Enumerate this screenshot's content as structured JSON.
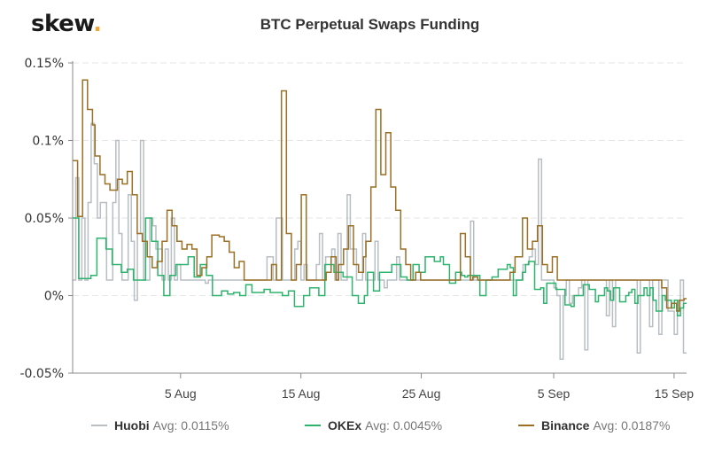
{
  "logo": {
    "text": "skew",
    "dot": "."
  },
  "colors": {
    "huobi": "#b7bec4",
    "okex": "#2eb36d",
    "binance": "#9b6f25",
    "grid": "#e6e6e6",
    "axis": "#888888",
    "logo_dot": "#e8a83a"
  },
  "legend": [
    {
      "name": "Huobi",
      "avg_label": "Avg: 0.0115%",
      "color": "#b7bec4"
    },
    {
      "name": "OKEx",
      "avg_label": "Avg: 0.0045%",
      "color": "#2eb36d"
    },
    {
      "name": "Binance",
      "avg_label": "Avg: 0.0187%",
      "color": "#9b6f25"
    }
  ],
  "chart_data": {
    "type": "line",
    "step": true,
    "title": "BTC Perpetual Swaps Funding",
    "xlabel": "",
    "ylabel": "",
    "ylim": [
      -0.05,
      0.15
    ],
    "yticks": [
      -0.05,
      0,
      0.05,
      0.1,
      0.15
    ],
    "ytick_labels": [
      "-0.05%",
      "0%",
      "0.05%",
      "0.1%",
      "0.15%"
    ],
    "xlim_days": [
      0,
      51
    ],
    "x_origin": "27 Jul",
    "xticks_day": [
      9,
      19,
      29,
      40,
      50
    ],
    "xtick_labels": [
      "5 Aug",
      "15 Aug",
      "25 Aug",
      "5 Sep",
      "15 Sep"
    ],
    "grid": "horizontal-dashed",
    "legend_position": "bottom",
    "period_days": 0.3333,
    "series": [
      {
        "name": "Huobi",
        "avg": 0.0115,
        "values": [
          0.01,
          0.076,
          0.01,
          0.05,
          0.01,
          0.06,
          0.111,
          0.085,
          0.05,
          0.06,
          0.06,
          0.01,
          0.01,
          0.06,
          0.1,
          0.04,
          0.01,
          0.01,
          0.065,
          0.035,
          -0.003,
          0.04,
          0.1,
          0.01,
          0.01,
          0.05,
          0.045,
          0.03,
          0.03,
          0.01,
          0.03,
          0.01,
          0.05,
          0.01,
          0.02,
          0.01,
          0.01,
          0.01,
          0.01,
          0.01,
          0.01,
          0.01,
          0.01,
          0.008,
          0.01,
          0.01,
          0.01,
          0.01,
          0.01,
          0.01,
          0.01,
          0.01,
          0.01,
          0.01,
          0.01,
          0.01,
          0.01,
          0.01,
          0.01,
          0.01,
          0.01,
          0.01,
          0.01,
          0.025,
          0.025,
          0.01,
          0.05,
          0.05,
          0.01,
          0.01,
          0.01,
          0.01,
          0.03,
          0.035,
          0.01,
          0.02,
          0.01,
          0.01,
          0.01,
          0.02,
          0.04,
          0.01,
          0.025,
          0.025,
          0.03,
          0.01,
          0.04,
          0.01,
          0.01,
          0.065,
          0.03,
          0.03,
          0.01,
          0.01,
          0.04,
          0.01,
          0.01,
          0.01,
          0.035,
          0.01,
          0.01,
          0.005,
          0.01,
          0.01,
          0.01,
          0.025,
          0.01,
          0.01,
          0.01,
          0.01,
          0.01,
          0.01,
          0.01,
          0.01,
          0.01,
          0.01,
          0.01,
          0.01,
          0.01,
          0.01,
          0.01,
          0.01,
          0.01,
          0.01,
          0.01,
          0.01,
          0.01,
          0.01,
          0.01,
          0.048,
          0.01,
          0.01,
          0.01,
          0.01,
          0.01,
          0.01,
          0.01,
          0.01,
          0.01,
          0.01,
          0.01,
          0.01,
          0.01,
          0.01,
          0.01,
          0.01,
          0.02,
          0.02,
          0.025,
          0.03,
          0.02,
          0.088,
          0.01,
          0.01,
          0.01,
          0.01,
          0.005,
          0.0,
          -0.041,
          0.0,
          0.01,
          -0.005,
          0.0,
          0.0,
          0.005,
          0.01,
          -0.035,
          0.01,
          0.01,
          0.01,
          0.01,
          0.01,
          0.01,
          -0.013,
          0.01,
          -0.02,
          0.01,
          0.01,
          0.01,
          0.01,
          0.01,
          0.01,
          0.01,
          -0.037,
          0.01,
          0.01,
          0.01,
          -0.02,
          0.01,
          0.01,
          -0.025,
          0.01,
          0.01,
          -0.01,
          -0.01,
          -0.025,
          -0.01,
          0.01,
          -0.037
        ],
        "color": "#b7bec4"
      },
      {
        "name": "OKEx",
        "avg": 0.0045,
        "values": [
          0.05,
          0.05,
          0.011,
          0.011,
          0.011,
          0.011,
          0.013,
          0.013,
          0.037,
          0.037,
          0.037,
          0.03,
          0.03,
          0.02,
          0.02,
          0.02,
          0.015,
          0.015,
          0.017,
          0.017,
          0.01,
          0.01,
          0.01,
          0.01,
          0.05,
          0.05,
          0.035,
          0.035,
          0.013,
          0.013,
          0.0,
          0.0,
          0.013,
          0.013,
          0.02,
          0.02,
          0.02,
          0.02,
          0.025,
          0.025,
          0.012,
          0.012,
          0.02,
          0.02,
          0.013,
          0.013,
          0.0,
          0.0,
          0.0,
          0.003,
          0.003,
          0.001,
          0.001,
          0.002,
          0.002,
          0.0,
          0.0,
          0.007,
          0.007,
          0.002,
          0.002,
          0.002,
          0.002,
          0.004,
          0.004,
          0.002,
          0.002,
          0.002,
          0.002,
          0.0,
          0.0,
          0.003,
          0.003,
          -0.007,
          -0.007,
          -0.007,
          0.0,
          0.0,
          0.005,
          0.005,
          0.005,
          0.0,
          0.0,
          0.02,
          0.02,
          0.02,
          0.015,
          0.015,
          0.015,
          0.012,
          0.012,
          0.012,
          0.0,
          0.0,
          -0.005,
          -0.005,
          0.0,
          0.015,
          0.015,
          0.003,
          0.003,
          0.015,
          0.015,
          0.015,
          0.015,
          0.02,
          0.02,
          0.02,
          0.012,
          0.012,
          0.01,
          0.01,
          0.02,
          0.02,
          0.015,
          0.015,
          0.025,
          0.025,
          0.025,
          0.022,
          0.022,
          0.025,
          0.02,
          0.02,
          0.008,
          0.008,
          0.015,
          0.015,
          0.013,
          0.012,
          0.013,
          0.013,
          0.013,
          0.013,
          0.0,
          0.0,
          0.01,
          0.01,
          0.012,
          0.012,
          0.017,
          0.017,
          0.017,
          0.02,
          0.018,
          0.0,
          0.01,
          0.01,
          0.015,
          0.02,
          0.022,
          0.022,
          0.004,
          0.004,
          0.005,
          -0.005,
          0.008,
          0.008,
          0.008,
          0.004,
          0.004,
          0.004,
          -0.006,
          -0.006,
          -0.007,
          0.0,
          0.0,
          0.0,
          0.007,
          0.007,
          0.004,
          0.004,
          -0.004,
          0.0,
          0.0,
          0.005,
          0.003,
          -0.003,
          0.005,
          0.005,
          -0.004,
          -0.004,
          0.0,
          0.002,
          0.004,
          -0.005,
          0.0,
          0.0,
          0.005,
          0.0,
          0.005,
          -0.003,
          -0.01,
          -0.01,
          0.0,
          -0.003,
          -0.003,
          -0.008,
          -0.003,
          -0.013,
          -0.008,
          -0.005
        ],
        "color": "#2eb36d"
      },
      {
        "name": "Binance",
        "avg": 0.0187,
        "values": [
          0.087,
          0.087,
          0.051,
          0.051,
          0.139,
          0.139,
          0.12,
          0.12,
          0.11,
          0.09,
          0.09,
          0.078,
          0.078,
          0.072,
          0.072,
          0.068,
          0.068,
          0.068,
          0.075,
          0.075,
          0.072,
          0.072,
          0.08,
          0.08,
          0.065,
          0.065,
          0.04,
          0.04,
          0.035,
          0.035,
          0.025,
          0.025,
          0.018,
          0.018,
          0.022,
          0.022,
          0.035,
          0.035,
          0.055,
          0.055,
          0.045,
          0.045,
          0.035,
          0.035,
          0.03,
          0.03,
          0.033,
          0.033,
          0.03,
          0.03,
          0.013,
          0.013,
          0.018,
          0.018,
          0.025,
          0.025,
          0.039,
          0.039,
          0.039,
          0.038,
          0.038,
          0.035,
          0.035,
          0.028,
          0.028,
          0.018,
          0.018,
          0.022,
          0.022,
          0.01,
          0.01,
          0.01,
          0.01,
          0.01,
          0.01,
          0.01,
          0.01,
          0.01,
          0.01,
          0.01,
          0.02,
          0.02,
          0.01,
          0.01,
          0.132,
          0.132,
          0.04,
          0.04,
          0.01,
          0.01,
          0.02,
          0.02,
          0.065,
          0.065,
          0.01,
          0.01,
          0.01,
          0.01,
          0.01,
          0.01,
          0.01,
          0.01,
          0.015,
          0.015,
          0.025,
          0.025,
          0.01,
          0.02,
          0.02,
          0.03,
          0.03,
          0.045,
          0.045,
          0.02,
          0.02,
          0.015,
          0.015,
          0.025,
          0.035,
          0.035,
          0.07,
          0.07,
          0.12,
          0.12,
          0.078,
          0.078,
          0.105,
          0.105,
          0.07,
          0.07,
          0.055,
          0.055,
          0.03,
          0.03,
          0.02,
          0.02,
          0.01,
          0.01,
          0.015,
          0.015,
          0.01,
          0.01,
          0.01,
          0.01,
          0.01,
          0.01,
          0.01,
          0.01,
          0.01,
          0.01,
          0.01,
          0.01,
          0.01,
          0.01,
          0.01,
          0.01,
          0.04,
          0.04,
          0.025,
          0.025,
          0.01,
          0.012,
          0.012,
          0.01,
          0.01,
          0.01,
          0.01,
          0.01,
          0.01,
          0.01,
          0.01,
          0.01,
          0.01,
          0.01,
          0.01,
          0.01,
          0.015,
          0.015,
          0.025,
          0.025,
          0.025,
          0.05,
          0.05,
          0.03,
          0.03,
          0.035,
          0.035,
          0.045,
          0.045,
          0.02,
          0.02,
          0.015,
          0.015,
          0.025,
          0.025,
          0.01,
          0.01,
          0.01,
          0.01,
          0.01,
          0.01,
          0.01,
          0.01,
          0.01,
          0.01,
          0.01,
          0.01,
          0.01,
          0.01,
          0.01,
          0.01,
          0.01,
          0.01,
          0.01,
          0.01,
          0.01,
          0.01,
          0.01,
          0.01,
          0.01,
          0.01,
          0.01,
          0.01,
          0.01,
          0.01,
          0.01,
          0.01,
          0.01,
          0.01,
          0.01,
          0.01,
          0.01,
          0.01,
          0.01,
          0.01,
          0.01,
          0.01,
          0.005,
          0.005,
          -0.008,
          -0.008,
          -0.005,
          -0.005,
          -0.01,
          -0.003,
          -0.003,
          -0.002
        ],
        "color": "#9b6f25"
      }
    ]
  }
}
